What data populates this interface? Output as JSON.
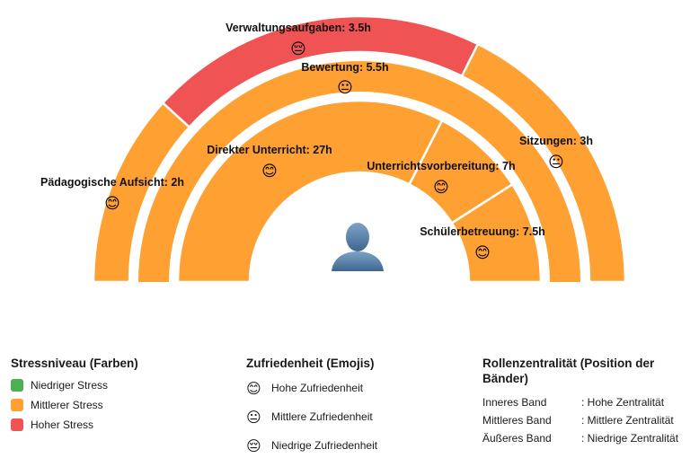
{
  "chart_data": {
    "type": "radial-bands",
    "colors": {
      "low": "#4CAF50",
      "medium": "#FFA033",
      "high": "#EF5353"
    },
    "center_icon": "person-silhouette-icon",
    "bands": [
      {
        "band": "inner",
        "segments": [
          {
            "label": "Direkter Unterricht: 27h",
            "hours": 27,
            "stress": "medium",
            "satisfaction": "high"
          },
          {
            "label": "Unterrichtsvorbereitung: 7h",
            "hours": 7,
            "stress": "medium",
            "satisfaction": "high"
          },
          {
            "label": "Schülerbetreuung: 7.5h",
            "hours": 7.5,
            "stress": "medium",
            "satisfaction": "high"
          }
        ]
      },
      {
        "band": "middle",
        "segments": [
          {
            "label": "Bewertung: 5.5h",
            "hours": 5.5,
            "stress": "medium",
            "satisfaction": "medium"
          }
        ]
      },
      {
        "band": "outer",
        "segments": [
          {
            "label": "Pädagogische Aufsicht: 2h",
            "hours": 2,
            "stress": "medium",
            "satisfaction": "high"
          },
          {
            "label": "Verwaltungsaufgaben: 3.5h",
            "hours": 3.5,
            "stress": "high",
            "satisfaction": "low"
          },
          {
            "label": "Sitzungen: 3h",
            "hours": 3,
            "stress": "medium",
            "satisfaction": "medium"
          }
        ]
      }
    ]
  },
  "legend": {
    "stress": {
      "title": "Stressniveau (Farben)",
      "items": [
        {
          "label": "Niedriger Stress",
          "color": "#4CAF50"
        },
        {
          "label": "Mittlerer Stress",
          "color": "#FFA033"
        },
        {
          "label": "Hoher Stress",
          "color": "#EF5353"
        }
      ]
    },
    "satisfaction": {
      "title": "Zufriedenheit (Emojis)",
      "items": [
        {
          "emoji": "😊",
          "label": "Hohe Zufriedenheit"
        },
        {
          "emoji": "😐",
          "label": "Mittlere Zufriedenheit"
        },
        {
          "emoji": "😔",
          "label": "Niedrige Zufriedenheit"
        }
      ]
    },
    "centrality": {
      "title": "Rollenzentralität (Position der Bänder)",
      "rows": [
        {
          "band": "Inneres Band",
          "meaning": ": Hohe Zentralität"
        },
        {
          "band": "Mittleres Band",
          "meaning": ": Mittlere Zentralität"
        },
        {
          "band": "Äußeres Band",
          "meaning": ": Niedrige Zentralität"
        }
      ]
    }
  }
}
